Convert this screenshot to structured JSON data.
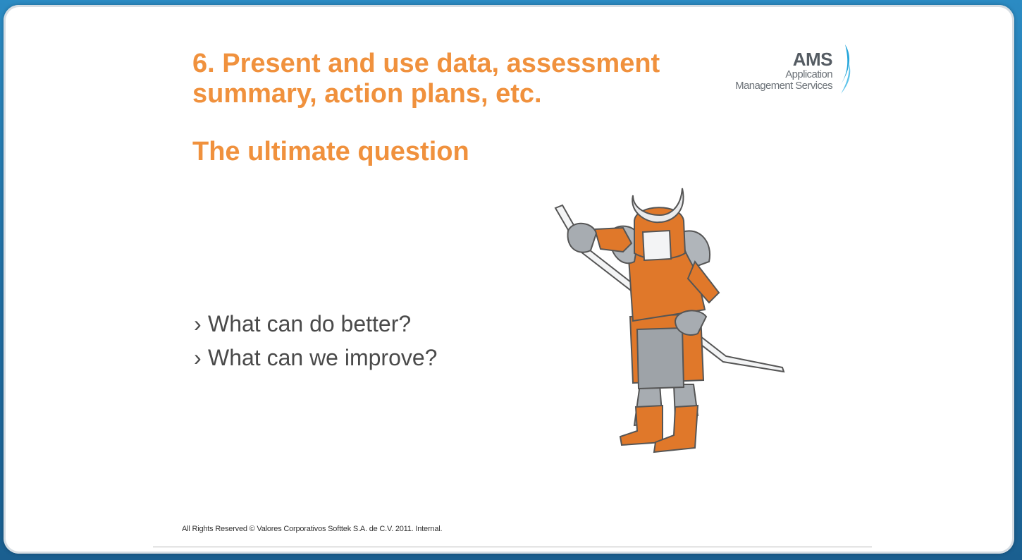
{
  "slide": {
    "title": "6. Present and use data, assessment summary, action plans, etc.",
    "subtitle": "The ultimate question",
    "bullet_marker": "›",
    "bullets": [
      "What can do better?",
      "What can we improve?"
    ],
    "footer": "All Rights Reserved © Valores Corporativos Softtek S.A. de C.V. 2011. Internal."
  },
  "logo": {
    "acronym": "AMS",
    "line1": "Application",
    "line2": "Management Services",
    "icon": "ams-swoosh-icon"
  },
  "illustration": {
    "subject": "samurai-illustration"
  },
  "colors": {
    "title": "#f0913d",
    "frame": "#1f6da2",
    "armor_orange": "#e0782a",
    "armor_gray": "#9ea3a8",
    "logo_blue": "#27a6db"
  }
}
